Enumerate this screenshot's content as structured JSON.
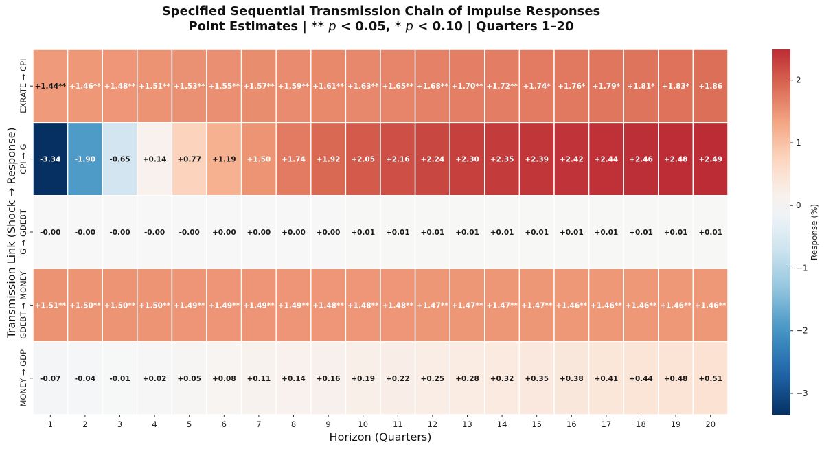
{
  "title": {
    "line1": "Specified Sequential Transmission Chain of Impulse Responses",
    "line2_prefix": "Point Estimates | ** ",
    "p_symbol": "p",
    "line2_mid1": " < 0.05, * ",
    "line2_mid2": " < 0.10 | Quarters 1–20"
  },
  "chart_data": {
    "type": "heatmap",
    "xlabel": "Horizon (Quarters)",
    "ylabel": "Transmission Link (Shock → Response)",
    "colorbar_label": "Response (%)",
    "colorbar_ticks": [
      "−3",
      "−2",
      "−1",
      "0",
      "1",
      "2"
    ],
    "vmin": -3.34,
    "vmax": 2.49,
    "colormap": "RdBu_r",
    "x": [
      "1",
      "2",
      "3",
      "4",
      "5",
      "6",
      "7",
      "8",
      "9",
      "10",
      "11",
      "12",
      "13",
      "14",
      "15",
      "16",
      "17",
      "18",
      "19",
      "20"
    ],
    "rows": [
      {
        "name": "EXRATE → CPI",
        "values": [
          1.44,
          1.46,
          1.48,
          1.51,
          1.53,
          1.55,
          1.57,
          1.59,
          1.61,
          1.63,
          1.65,
          1.68,
          1.7,
          1.72,
          1.74,
          1.76,
          1.79,
          1.81,
          1.83,
          1.86
        ],
        "labels": [
          "+1.44**",
          "+1.46**",
          "+1.48**",
          "+1.51**",
          "+1.53**",
          "+1.55**",
          "+1.57**",
          "+1.59**",
          "+1.61**",
          "+1.63**",
          "+1.65**",
          "+1.68**",
          "+1.70**",
          "+1.72**",
          "+1.74*",
          "+1.76*",
          "+1.79*",
          "+1.81*",
          "+1.83*",
          "+1.86"
        ]
      },
      {
        "name": "CPI → G",
        "values": [
          -3.34,
          -1.9,
          -0.65,
          0.14,
          0.77,
          1.19,
          1.5,
          1.74,
          1.92,
          2.05,
          2.16,
          2.24,
          2.3,
          2.35,
          2.39,
          2.42,
          2.44,
          2.46,
          2.48,
          2.49
        ],
        "labels": [
          "-3.34",
          "-1.90",
          "-0.65",
          "+0.14",
          "+0.77",
          "+1.19",
          "+1.50",
          "+1.74",
          "+1.92",
          "+2.05",
          "+2.16",
          "+2.24",
          "+2.30",
          "+2.35",
          "+2.39",
          "+2.42",
          "+2.44",
          "+2.46",
          "+2.48",
          "+2.49"
        ]
      },
      {
        "name": "G → GDEBT",
        "values": [
          -0.001,
          -0.001,
          -0.001,
          -0.001,
          -0.001,
          0.0,
          0.0,
          0.0,
          0.0,
          0.01,
          0.01,
          0.01,
          0.01,
          0.01,
          0.01,
          0.01,
          0.01,
          0.01,
          0.01,
          0.01
        ],
        "labels": [
          "-0.00",
          "-0.00",
          "-0.00",
          "-0.00",
          "-0.00",
          "+0.00",
          "+0.00",
          "+0.00",
          "+0.00",
          "+0.01",
          "+0.01",
          "+0.01",
          "+0.01",
          "+0.01",
          "+0.01",
          "+0.01",
          "+0.01",
          "+0.01",
          "+0.01",
          "+0.01"
        ]
      },
      {
        "name": "GDEBT → MONEY",
        "values": [
          1.51,
          1.5,
          1.5,
          1.5,
          1.49,
          1.49,
          1.49,
          1.49,
          1.48,
          1.48,
          1.48,
          1.47,
          1.47,
          1.47,
          1.47,
          1.46,
          1.46,
          1.46,
          1.46,
          1.46
        ],
        "labels": [
          "+1.51**",
          "+1.50**",
          "+1.50**",
          "+1.50**",
          "+1.49**",
          "+1.49**",
          "+1.49**",
          "+1.49**",
          "+1.48**",
          "+1.48**",
          "+1.48**",
          "+1.47**",
          "+1.47**",
          "+1.47**",
          "+1.47**",
          "+1.46**",
          "+1.46**",
          "+1.46**",
          "+1.46**",
          "+1.46**"
        ]
      },
      {
        "name": "MONEY → GDP",
        "values": [
          -0.07,
          -0.04,
          -0.01,
          0.02,
          0.05,
          0.08,
          0.11,
          0.14,
          0.16,
          0.19,
          0.22,
          0.25,
          0.28,
          0.32,
          0.35,
          0.38,
          0.41,
          0.44,
          0.48,
          0.51
        ],
        "labels": [
          "-0.07",
          "-0.04",
          "-0.01",
          "+0.02",
          "+0.05",
          "+0.08",
          "+0.11",
          "+0.14",
          "+0.16",
          "+0.19",
          "+0.22",
          "+0.25",
          "+0.28",
          "+0.32",
          "+0.35",
          "+0.38",
          "+0.41",
          "+0.44",
          "+0.48",
          "+0.51"
        ]
      }
    ]
  }
}
